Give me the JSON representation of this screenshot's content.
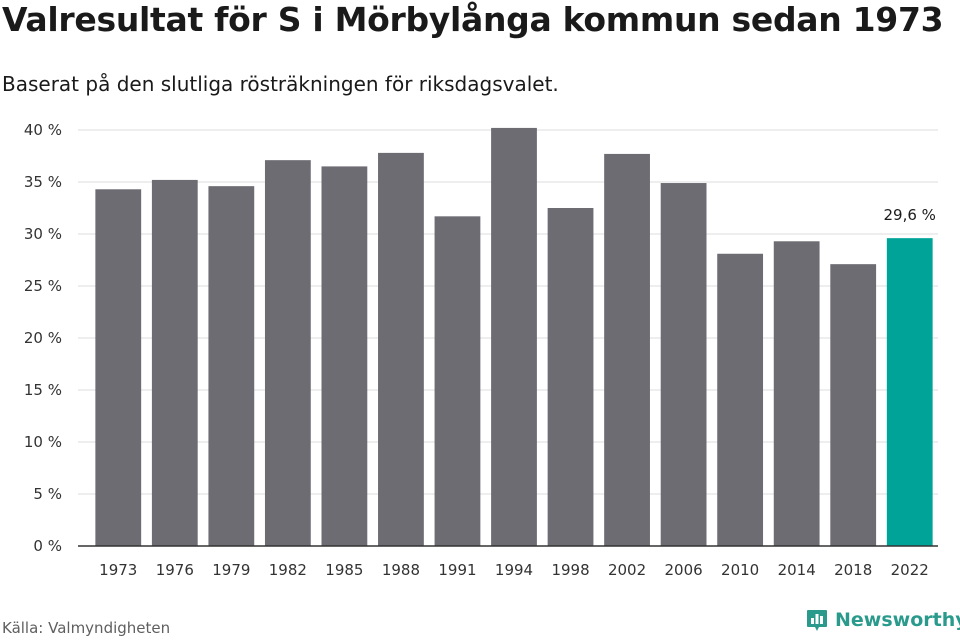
{
  "title": "Valresultat för S i Mörbylånga kommun sedan 1973",
  "subtitle": "Baserat på den slutliga rösträkningen för riksdagsvalet.",
  "source": "Källa: Valmyndigheten",
  "brand": "Newsworthy",
  "colors": {
    "bar": "#6d6c72",
    "highlight": "#00a398",
    "grid": "#dcdcdc",
    "axis": "#333333",
    "brand": "#2a9a8c"
  },
  "chart_data": {
    "type": "bar",
    "categories": [
      "1973",
      "1976",
      "1979",
      "1982",
      "1985",
      "1988",
      "1991",
      "1994",
      "1998",
      "2002",
      "2006",
      "2010",
      "2014",
      "2018",
      "2022"
    ],
    "values": [
      34.3,
      35.2,
      34.6,
      37.1,
      36.5,
      37.8,
      31.7,
      40.2,
      32.5,
      37.7,
      34.9,
      28.1,
      29.3,
      27.1,
      29.6
    ],
    "highlight_index": 14,
    "data_labels": [
      {
        "index": 14,
        "text": "29,6 %"
      }
    ],
    "yticks": [
      "0 %",
      "5 %",
      "10 %",
      "15 %",
      "20 %",
      "25 %",
      "30 %",
      "35 %",
      "40 %"
    ],
    "ylim": [
      0,
      40
    ],
    "grid": true,
    "legend": "none",
    "xlabel": "",
    "ylabel": ""
  }
}
